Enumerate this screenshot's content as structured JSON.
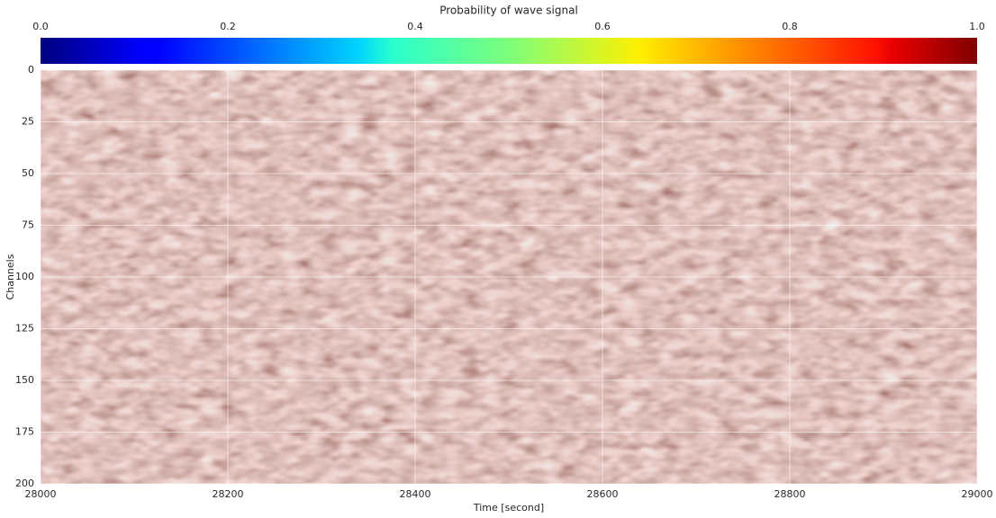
{
  "chart_data": {
    "type": "heatmap",
    "xlabel": "Time [second]",
    "ylabel": "Channels",
    "xlim": [
      28000,
      29000
    ],
    "xticks": [
      28000,
      28200,
      28400,
      28600,
      28800,
      29000
    ],
    "ylim": [
      200,
      0
    ],
    "yticks": [
      0,
      25,
      50,
      75,
      100,
      125,
      150,
      175,
      200
    ],
    "grid": true,
    "colorbar": {
      "label": "Probability of wave signal",
      "colormap": "jet",
      "lim": [
        0,
        1
      ],
      "ticks": [
        {
          "value": 0,
          "label": "0.0"
        },
        0.2,
        0.4,
        0.6,
        0.8,
        {
          "value": 1,
          "label": "1.0"
        }
      ]
    }
  }
}
